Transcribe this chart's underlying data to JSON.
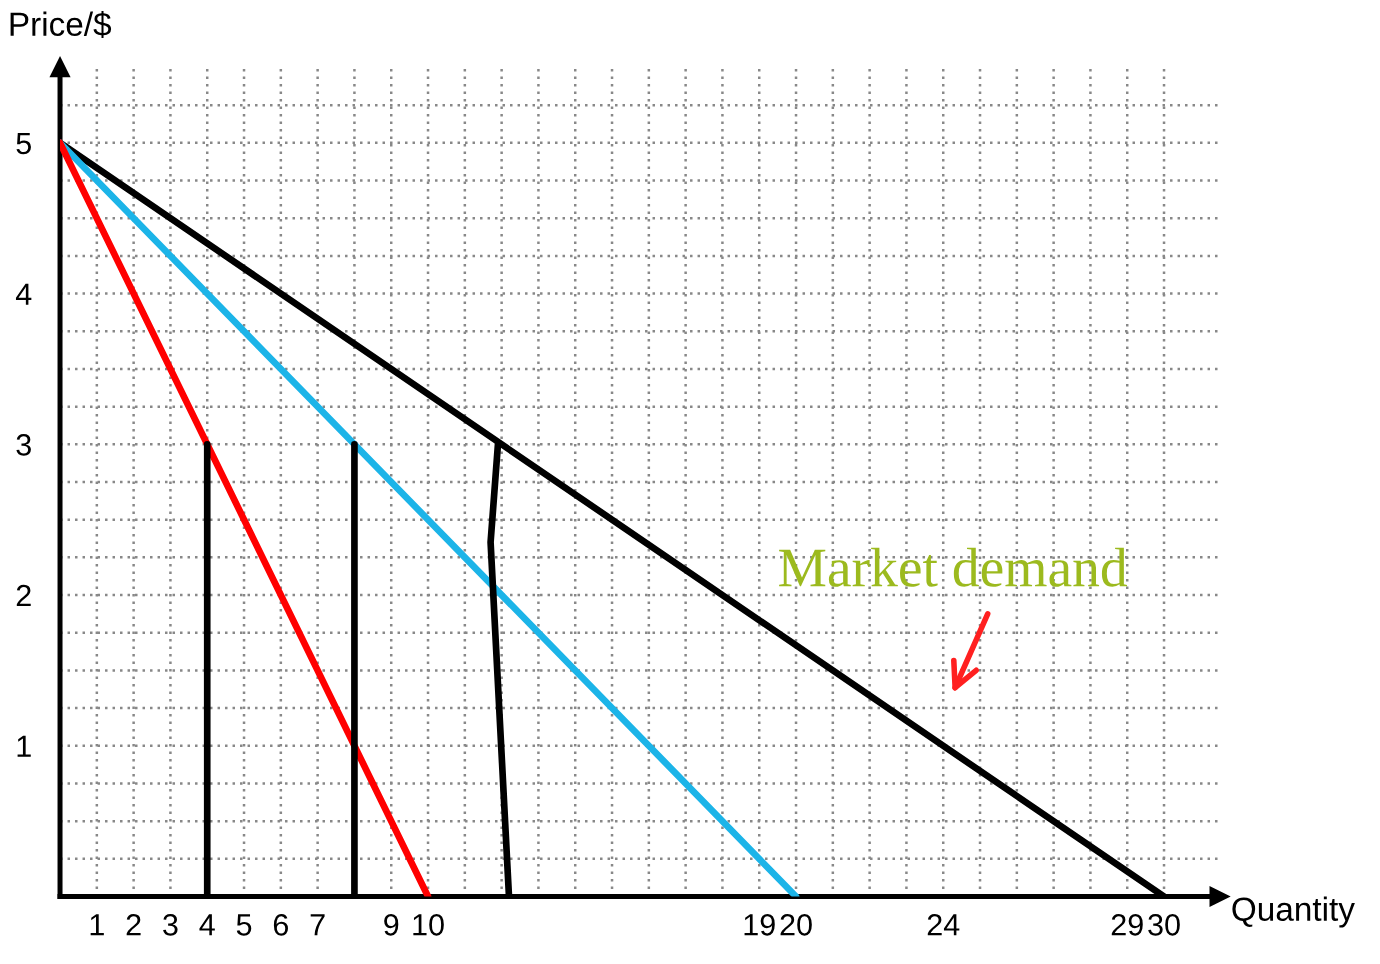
{
  "chart_data": {
    "type": "line",
    "xlabel": "Quantity",
    "ylabel": "Price/$",
    "xlim": [
      0,
      31.5
    ],
    "ylim": [
      0,
      5.5
    ],
    "xticks": [
      1,
      2,
      3,
      4,
      5,
      6,
      7,
      {
        "value": 8,
        "label": null
      },
      9,
      10,
      {
        "value": 11,
        "label": null
      },
      {
        "value": 12,
        "label": null
      },
      {
        "value": 13,
        "label": null
      },
      {
        "value": 14,
        "label": null
      },
      {
        "value": 15,
        "label": null
      },
      {
        "value": 16,
        "label": null
      },
      {
        "value": 17,
        "label": null
      },
      {
        "value": 18,
        "label": null
      },
      19,
      20,
      {
        "value": 21,
        "label": null
      },
      {
        "value": 22,
        "label": null
      },
      {
        "value": 23,
        "label": null
      },
      24,
      {
        "value": 25,
        "label": null
      },
      {
        "value": 26,
        "label": null
      },
      {
        "value": 27,
        "label": null
      },
      {
        "value": 28,
        "label": null
      },
      29,
      30
    ],
    "yticks": [
      {
        "value": 0.25,
        "label": null
      },
      {
        "value": 0.5,
        "label": null
      },
      {
        "value": 0.75,
        "label": null
      },
      1,
      {
        "value": 1.25,
        "label": null
      },
      {
        "value": 1.5,
        "label": null
      },
      {
        "value": 1.75,
        "label": null
      },
      2,
      {
        "value": 2.25,
        "label": null
      },
      {
        "value": 2.5,
        "label": null
      },
      {
        "value": 2.75,
        "label": null
      },
      3,
      {
        "value": 3.25,
        "label": null
      },
      {
        "value": 3.5,
        "label": null
      },
      {
        "value": 3.75,
        "label": null
      },
      4,
      {
        "value": 4.25,
        "label": null
      },
      {
        "value": 4.5,
        "label": null
      },
      {
        "value": 4.75,
        "label": null
      },
      5,
      {
        "value": 5.25,
        "label": null
      }
    ],
    "grid": true,
    "marker": "none",
    "line_style": "solid",
    "series": [
      {
        "color": "#000000",
        "x": [
          0,
          30
        ],
        "values": [
          5,
          0
        ]
      },
      {
        "color": "#1cb4e8",
        "x": [
          0,
          20
        ],
        "values": [
          5,
          0
        ]
      },
      {
        "color": "#ff0000",
        "x": [
          0,
          10
        ],
        "values": [
          5,
          0
        ]
      },
      {
        "color": "#000000",
        "x": [
          4,
          4
        ],
        "values": [
          0,
          3
        ]
      },
      {
        "color": "#000000",
        "x": [
          8,
          8
        ],
        "values": [
          0,
          3
        ]
      },
      {
        "color": "#000000",
        "x": [
          12.2,
          11.7,
          11.9
        ],
        "values": [
          0,
          2.35,
          3.0
        ]
      }
    ],
    "annotations": [
      "Market demand"
    ]
  }
}
